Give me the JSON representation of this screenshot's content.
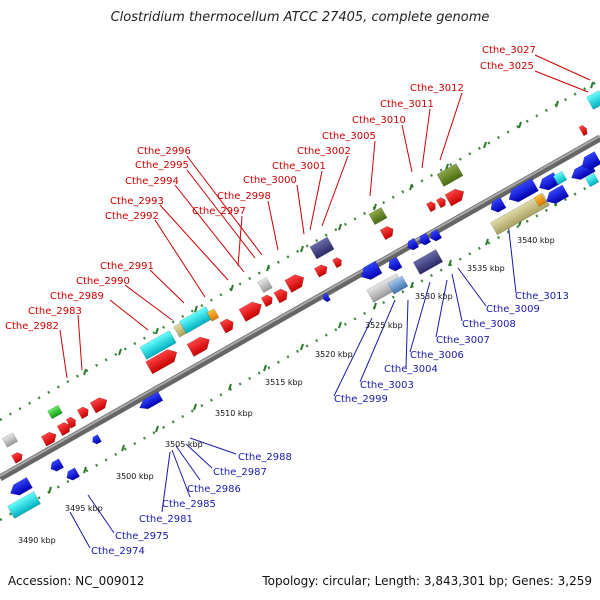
{
  "title": "Clostridium thermocellum ATCC 27405, complete genome",
  "footer": {
    "accession": "Accession: NC_009012",
    "summary": "Topology: circular; Length: 3,843,301 bp; Genes: 3,259"
  },
  "colors": {
    "forward_label": "#cc0000",
    "reverse_label": "#1a1aaa",
    "backbone": "#888888",
    "dots": "#3a8a3a"
  },
  "scale_ticks": [
    {
      "label": "3490 kbp"
    },
    {
      "label": "3495 kbp"
    },
    {
      "label": "3500 kbp"
    },
    {
      "label": "3505 kbp"
    },
    {
      "label": "3510 kbp"
    },
    {
      "label": "3515 kbp"
    },
    {
      "label": "3520 kbp"
    },
    {
      "label": "3525 kbp"
    },
    {
      "label": "3530 kbp"
    },
    {
      "label": "3535 kbp"
    },
    {
      "label": "3540 kbp"
    }
  ],
  "forward_genes": [
    {
      "name": "Cthe_2982"
    },
    {
      "name": "Cthe_2983"
    },
    {
      "name": "Cthe_2989"
    },
    {
      "name": "Cthe_2990"
    },
    {
      "name": "Cthe_2991"
    },
    {
      "name": "Cthe_2992"
    },
    {
      "name": "Cthe_2993"
    },
    {
      "name": "Cthe_2994"
    },
    {
      "name": "Cthe_2995"
    },
    {
      "name": "Cthe_2996"
    },
    {
      "name": "Cthe_2997"
    },
    {
      "name": "Cthe_2998"
    },
    {
      "name": "Cthe_3000"
    },
    {
      "name": "Cthe_3001"
    },
    {
      "name": "Cthe_3002"
    },
    {
      "name": "Cthe_3005"
    },
    {
      "name": "Cthe_3010"
    },
    {
      "name": "Cthe_3011"
    },
    {
      "name": "Cthe_3012"
    },
    {
      "name": "Cthe_3025"
    },
    {
      "name": "Cthe_3027"
    }
  ],
  "reverse_genes": [
    {
      "name": "Cthe_2974"
    },
    {
      "name": "Cthe_2975"
    },
    {
      "name": "Cthe_2981"
    },
    {
      "name": "Cthe_2985"
    },
    {
      "name": "Cthe_2986"
    },
    {
      "name": "Cthe_2987"
    },
    {
      "name": "Cthe_2988"
    },
    {
      "name": "Cthe_2999"
    },
    {
      "name": "Cthe_3003"
    },
    {
      "name": "Cthe_3004"
    },
    {
      "name": "Cthe_3006"
    },
    {
      "name": "Cthe_3007"
    },
    {
      "name": "Cthe_3008"
    },
    {
      "name": "Cthe_3009"
    },
    {
      "name": "Cthe_3013"
    }
  ]
}
